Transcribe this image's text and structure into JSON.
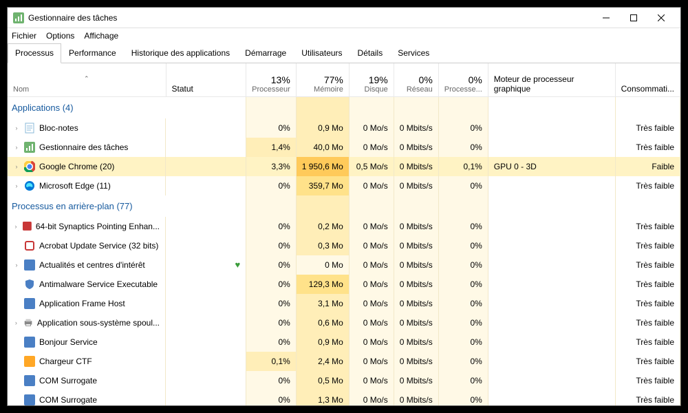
{
  "window": {
    "title": "Gestionnaire des tâches"
  },
  "menu": {
    "file": "Fichier",
    "options": "Options",
    "view": "Affichage"
  },
  "tabs": [
    "Processus",
    "Performance",
    "Historique des applications",
    "Démarrage",
    "Utilisateurs",
    "Détails",
    "Services"
  ],
  "columns": {
    "name": "Nom",
    "status": "Statut",
    "cpu_pct": "13%",
    "cpu_lbl": "Processeur",
    "mem_pct": "77%",
    "mem_lbl": "Mémoire",
    "disk_pct": "19%",
    "disk_lbl": "Disque",
    "net_pct": "0%",
    "net_lbl": "Réseau",
    "gpu_pct": "0%",
    "gpu_lbl": "Processe...",
    "gpueng_lbl": "Moteur de processeur graphique",
    "power_lbl": "Consommati..."
  },
  "groups": [
    {
      "label": "Applications (4)",
      "rows": [
        {
          "exp": true,
          "icon": "notepad",
          "name": "Bloc-notes",
          "cpu": "0%",
          "mem": "0,9 Mo",
          "disk": "0 Mo/s",
          "net": "0 Mbits/s",
          "gpu": "0%",
          "eng": "",
          "pow": "Très faible",
          "heat": {
            "cpu": 0,
            "mem": 1,
            "disk": 0,
            "net": 0,
            "gpu": 0
          }
        },
        {
          "exp": true,
          "icon": "taskmgr",
          "name": "Gestionnaire des tâches",
          "cpu": "1,4%",
          "mem": "40,0 Mo",
          "disk": "0 Mo/s",
          "net": "0 Mbits/s",
          "gpu": "0%",
          "eng": "",
          "pow": "Très faible",
          "heat": {
            "cpu": 1,
            "mem": 1,
            "disk": 0,
            "net": 0,
            "gpu": 0
          }
        },
        {
          "exp": true,
          "icon": "chrome",
          "name": "Google Chrome (20)",
          "sel": true,
          "cpu": "3,3%",
          "mem": "1 950,6 Mo",
          "disk": "0,5 Mo/s",
          "net": "0 Mbits/s",
          "gpu": "0,1%",
          "eng": "GPU 0 - 3D",
          "pow": "Faible",
          "heat": {
            "cpu": 2,
            "mem": 3,
            "disk": 1,
            "net": 0,
            "gpu": 0
          }
        },
        {
          "exp": true,
          "icon": "edge",
          "name": "Microsoft Edge (11)",
          "cpu": "0%",
          "mem": "359,7 Mo",
          "disk": "0 Mo/s",
          "net": "0 Mbits/s",
          "gpu": "0%",
          "eng": "",
          "pow": "Très faible",
          "heat": {
            "cpu": 0,
            "mem": 2,
            "disk": 0,
            "net": 0,
            "gpu": 0
          }
        }
      ]
    },
    {
      "label": "Processus en arrière-plan (77)",
      "rows": [
        {
          "exp": true,
          "icon": "synaptics",
          "name": "64-bit Synaptics Pointing Enhan...",
          "cpu": "0%",
          "mem": "0,2 Mo",
          "disk": "0 Mo/s",
          "net": "0 Mbits/s",
          "gpu": "0%",
          "eng": "",
          "pow": "Très faible",
          "heat": {
            "cpu": 0,
            "mem": 1,
            "disk": 0,
            "net": 0,
            "gpu": 0
          }
        },
        {
          "exp": false,
          "icon": "acrobat",
          "name": "Acrobat Update Service (32 bits)",
          "cpu": "0%",
          "mem": "0,3 Mo",
          "disk": "0 Mo/s",
          "net": "0 Mbits/s",
          "gpu": "0%",
          "eng": "",
          "pow": "Très faible",
          "heat": {
            "cpu": 0,
            "mem": 1,
            "disk": 0,
            "net": 0,
            "gpu": 0
          }
        },
        {
          "exp": true,
          "icon": "news",
          "name": "Actualités et centres d'intérêt",
          "leaf": true,
          "cpu": "0%",
          "mem": "0 Mo",
          "disk": "0 Mo/s",
          "net": "0 Mbits/s",
          "gpu": "0%",
          "eng": "",
          "pow": "Très faible",
          "heat": {
            "cpu": 0,
            "mem": 0,
            "disk": 0,
            "net": 0,
            "gpu": 0
          }
        },
        {
          "exp": false,
          "icon": "shield",
          "name": "Antimalware Service Executable",
          "cpu": "0%",
          "mem": "129,3 Mo",
          "disk": "0 Mo/s",
          "net": "0 Mbits/s",
          "gpu": "0%",
          "eng": "",
          "pow": "Très faible",
          "heat": {
            "cpu": 0,
            "mem": 2,
            "disk": 0,
            "net": 0,
            "gpu": 0
          }
        },
        {
          "exp": false,
          "icon": "frame",
          "name": "Application Frame Host",
          "cpu": "0%",
          "mem": "3,1 Mo",
          "disk": "0 Mo/s",
          "net": "0 Mbits/s",
          "gpu": "0%",
          "eng": "",
          "pow": "Très faible",
          "heat": {
            "cpu": 0,
            "mem": 1,
            "disk": 0,
            "net": 0,
            "gpu": 0
          }
        },
        {
          "exp": true,
          "icon": "printer",
          "name": "Application sous-système spoul...",
          "cpu": "0%",
          "mem": "0,6 Mo",
          "disk": "0 Mo/s",
          "net": "0 Mbits/s",
          "gpu": "0%",
          "eng": "",
          "pow": "Très faible",
          "heat": {
            "cpu": 0,
            "mem": 1,
            "disk": 0,
            "net": 0,
            "gpu": 0
          }
        },
        {
          "exp": false,
          "icon": "bonjour",
          "name": "Bonjour Service",
          "cpu": "0%",
          "mem": "0,9 Mo",
          "disk": "0 Mo/s",
          "net": "0 Mbits/s",
          "gpu": "0%",
          "eng": "",
          "pow": "Très faible",
          "heat": {
            "cpu": 0,
            "mem": 1,
            "disk": 0,
            "net": 0,
            "gpu": 0
          }
        },
        {
          "exp": false,
          "icon": "ctf",
          "name": "Chargeur CTF",
          "cpu": "0,1%",
          "mem": "2,4 Mo",
          "disk": "0 Mo/s",
          "net": "0 Mbits/s",
          "gpu": "0%",
          "eng": "",
          "pow": "Très faible",
          "heat": {
            "cpu": 1,
            "mem": 1,
            "disk": 0,
            "net": 0,
            "gpu": 0
          }
        },
        {
          "exp": false,
          "icon": "com",
          "name": "COM Surrogate",
          "cpu": "0%",
          "mem": "0,5 Mo",
          "disk": "0 Mo/s",
          "net": "0 Mbits/s",
          "gpu": "0%",
          "eng": "",
          "pow": "Très faible",
          "heat": {
            "cpu": 0,
            "mem": 1,
            "disk": 0,
            "net": 0,
            "gpu": 0
          }
        },
        {
          "exp": false,
          "icon": "com",
          "name": "COM Surrogate",
          "cpu": "0%",
          "mem": "1,3 Mo",
          "disk": "0 Mo/s",
          "net": "0 Mbits/s",
          "gpu": "0%",
          "eng": "",
          "pow": "Très faible",
          "heat": {
            "cpu": 0,
            "mem": 1,
            "disk": 0,
            "net": 0,
            "gpu": 0
          }
        }
      ]
    }
  ],
  "icons": {
    "notepad": {
      "bg": "#a8d8f0",
      "fg": "#fff",
      "txt": ""
    },
    "taskmgr": {
      "bg": "#6fb36f",
      "fg": "#fff",
      "txt": ""
    },
    "chrome": {
      "bg": "",
      "fg": "",
      "txt": ""
    },
    "edge": {
      "bg": "",
      "fg": "",
      "txt": ""
    },
    "synaptics": {
      "bg": "#c83737",
      "fg": "#fff",
      "txt": ""
    },
    "acrobat": {
      "bg": "#fff",
      "fg": "#c83737",
      "txt": ""
    },
    "news": {
      "bg": "#4a7fc4",
      "fg": "#fff",
      "txt": ""
    },
    "shield": {
      "bg": "#fff",
      "fg": "#4a7fc4",
      "txt": ""
    },
    "frame": {
      "bg": "#4a7fc4",
      "fg": "#fff",
      "txt": ""
    },
    "printer": {
      "bg": "#888",
      "fg": "#fff",
      "txt": ""
    },
    "bonjour": {
      "bg": "#4a7fc4",
      "fg": "#fff",
      "txt": ""
    },
    "ctf": {
      "bg": "#ffa726",
      "fg": "#fff",
      "txt": ""
    },
    "com": {
      "bg": "#4a7fc4",
      "fg": "#fff",
      "txt": ""
    }
  }
}
